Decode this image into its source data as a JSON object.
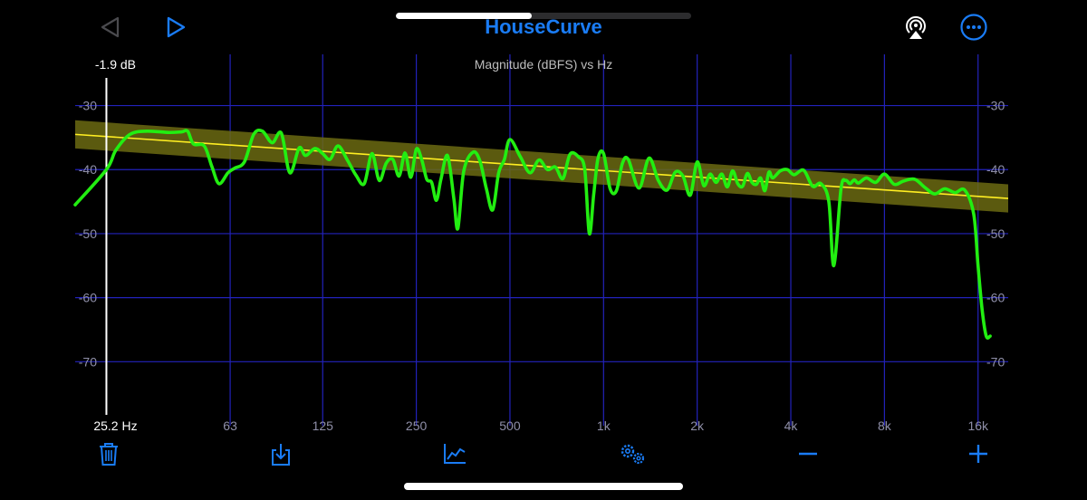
{
  "header": {
    "title": "HouseCurve",
    "back_icon": "triangle-left-icon",
    "play_icon": "triangle-right-icon",
    "airplay_icon": "airplay-icon",
    "more_icon": "ellipsis-circle-icon",
    "accent_color": "#1a7cf5"
  },
  "scrubber": {
    "progress": 0.46
  },
  "chart": {
    "title": "Magnitude (dBFS) vs Hz",
    "cursor_db_label": "-1.9 dB",
    "cursor_hz_label": "25.2 Hz",
    "y_ticks": [
      "-30",
      "-40",
      "-50",
      "-60",
      "-70"
    ],
    "x_ticks": [
      "63",
      "125",
      "250",
      "500",
      "1k",
      "2k",
      "4k",
      "8k",
      "16k"
    ]
  },
  "chart_data": {
    "type": "line",
    "title": "Magnitude (dBFS) vs Hz",
    "xlabel": "",
    "ylabel": "",
    "x_scale": "log",
    "xlim": [
      20,
      20000
    ],
    "ylim": [
      -80,
      -22
    ],
    "x_tick_values": [
      63,
      125,
      250,
      500,
      1000,
      2000,
      4000,
      8000,
      16000
    ],
    "y_tick_values": [
      -30,
      -40,
      -50,
      -60,
      -70
    ],
    "grid": true,
    "cursor": {
      "x": 25.2,
      "label_db": "-1.9 dB",
      "label_hz": "25.2 Hz"
    },
    "colors": {
      "measurement": "#22ee11",
      "target": "#ffee22",
      "band": "#6b6a12",
      "grid": "#2222bb"
    },
    "series": [
      {
        "role": "target",
        "x": [
          20,
          20000
        ],
        "y": [
          -34.5,
          -44.5
        ],
        "band": 2.2
      },
      {
        "role": "measurement",
        "x": [
          20,
          25.2,
          27,
          30,
          34,
          40,
          44,
          46,
          48,
          52,
          55,
          58,
          62,
          65,
          70,
          75,
          80,
          86,
          92,
          98,
          105,
          110,
          118,
          125,
          132,
          140,
          150,
          160,
          170,
          180,
          190,
          200,
          210,
          220,
          230,
          240,
          250,
          260,
          270,
          280,
          290,
          300,
          315,
          330,
          340,
          355,
          380,
          400,
          420,
          440,
          460,
          480,
          500,
          540,
          580,
          620,
          660,
          700,
          740,
          780,
          830,
          870,
          900,
          930,
          960,
          1000,
          1050,
          1100,
          1150,
          1200,
          1300,
          1400,
          1500,
          1600,
          1700,
          1800,
          1900,
          2000,
          2100,
          2200,
          2300,
          2400,
          2500,
          2600,
          2700,
          2800,
          2900,
          3000,
          3100,
          3200,
          3300,
          3400,
          3500,
          3700,
          3900,
          4100,
          4400,
          4700,
          5000,
          5300,
          5500,
          5800,
          6000,
          6200,
          6400,
          6600,
          7000,
          7500,
          8000,
          8600,
          9200,
          10000,
          10800,
          11600,
          12500,
          13500,
          14500,
          15500,
          16000,
          16500,
          17000,
          17500
        ],
        "y": [
          -45.5,
          -40,
          -37,
          -34.5,
          -34.0,
          -34.2,
          -34.1,
          -34.0,
          -36,
          -36.3,
          -39.5,
          -42.2,
          -40.5,
          -39.8,
          -38.8,
          -34.5,
          -34.0,
          -35.8,
          -34.3,
          -40.5,
          -36.6,
          -37.8,
          -36.7,
          -37.5,
          -38.4,
          -36.3,
          -38.5,
          -40.9,
          -42.2,
          -37.5,
          -41.7,
          -39.0,
          -38.4,
          -41.0,
          -37.4,
          -41.2,
          -36.8,
          -38.4,
          -41.5,
          -42.0,
          -44.8,
          -41.5,
          -37.8,
          -44.5,
          -49.2,
          -40.3,
          -37.3,
          -38.6,
          -43.0,
          -46.3,
          -40.5,
          -38.4,
          -35.3,
          -38.0,
          -40.5,
          -38.5,
          -40.0,
          -39.6,
          -41.4,
          -37.6,
          -38.0,
          -40.0,
          -50.0,
          -43.8,
          -38.2,
          -37.5,
          -43.0,
          -43.3,
          -39.0,
          -38.4,
          -42.9,
          -38.2,
          -41.7,
          -43.2,
          -40.4,
          -41.0,
          -44.0,
          -38.8,
          -42.5,
          -40.7,
          -42.0,
          -40.7,
          -42.7,
          -40.2,
          -42.2,
          -42.6,
          -40.6,
          -42.0,
          -42.3,
          -41.3,
          -43.3,
          -40.4,
          -41.3,
          -40.2,
          -40.0,
          -40.8,
          -40.1,
          -42.6,
          -42.2,
          -45.0,
          -55.0,
          -43.0,
          -41.7,
          -42.2,
          -41.6,
          -42.1,
          -41.3,
          -42.0,
          -40.7,
          -42.3,
          -41.8,
          -41.5,
          -42.8,
          -43.8,
          -43.0,
          -43.6,
          -43.2,
          -47.0,
          -55.0,
          -62.0,
          -66.0,
          -66.0
        ]
      }
    ]
  },
  "toolbar": {
    "icons": [
      "trash-icon",
      "export-icon",
      "chart-icon",
      "gears-icon",
      "minus-icon",
      "plus-icon"
    ]
  }
}
